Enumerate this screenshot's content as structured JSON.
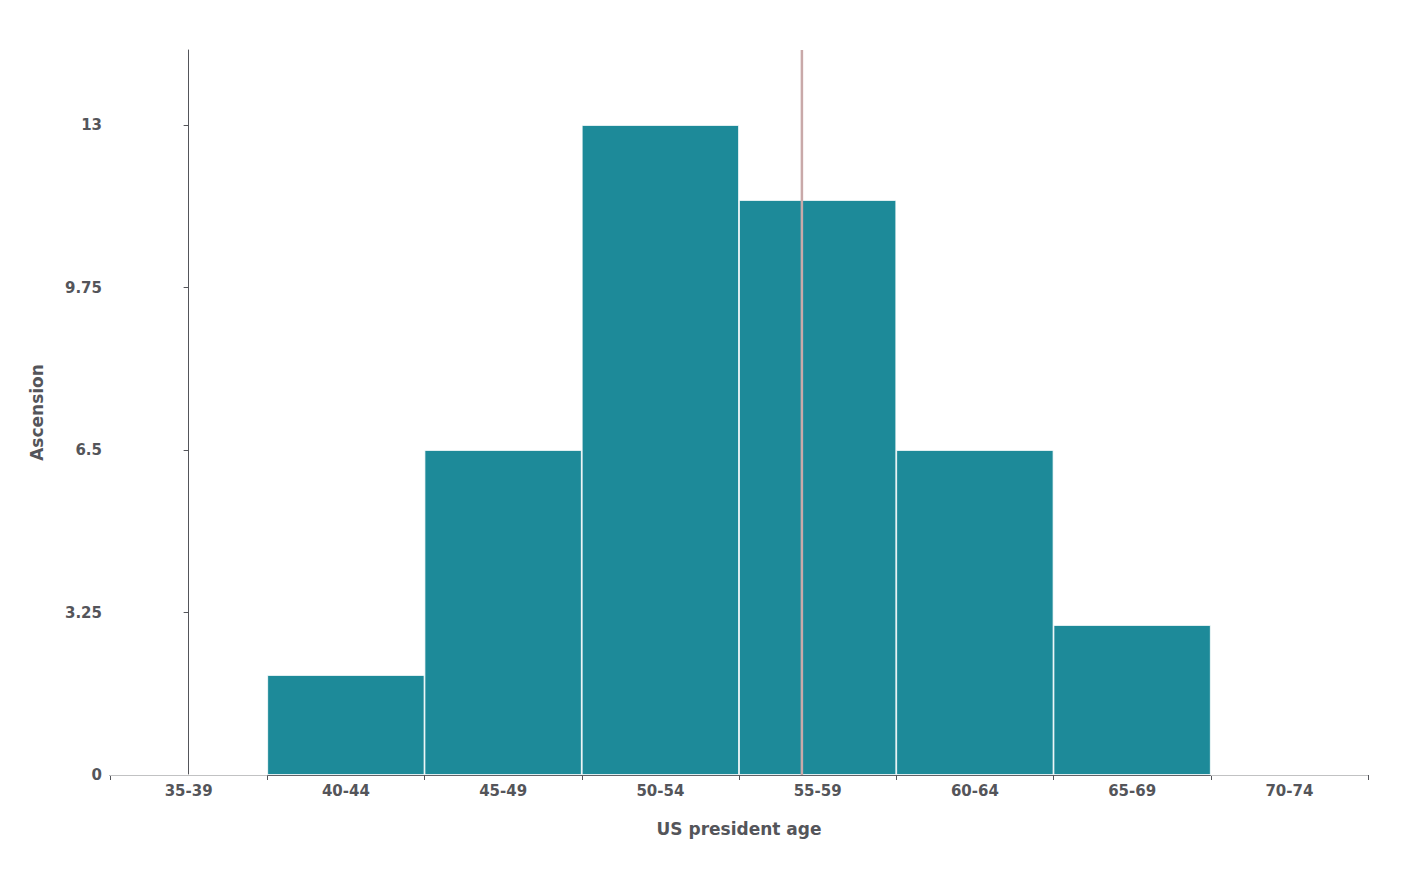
{
  "chart_data": {
    "type": "bar",
    "categories": [
      "35-39",
      "40-44",
      "45-49",
      "50-54",
      "55-59",
      "60-64",
      "65-69",
      "70-74"
    ],
    "values": [
      0,
      2,
      6.5,
      13,
      11.5,
      6.5,
      3,
      0
    ],
    "color": "#1d8a99",
    "xlabel": "US president age",
    "ylabel": "Ascension",
    "ylim": [
      0,
      14.5
    ],
    "yticks": [
      0,
      3.25,
      6.5,
      9.75,
      13
    ],
    "grid": false,
    "vlines": [
      {
        "x": 3.9,
        "color": "#c9a9a9"
      }
    ]
  }
}
